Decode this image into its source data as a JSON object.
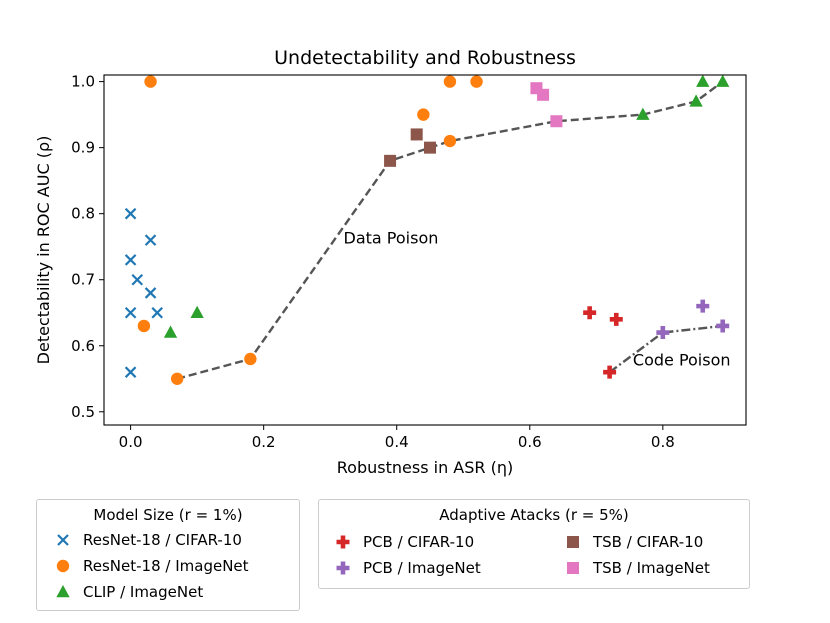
{
  "chart_data": {
    "type": "scatter",
    "title": "Undetectability and Robustness",
    "xlabel": "Robustness in ASR (η)",
    "ylabel": "Detectability in ROC AUC (ρ)",
    "xlim": [
      -0.04,
      0.925
    ],
    "ylim": [
      0.48,
      1.01
    ],
    "xticks": [
      "0.0",
      "0.2",
      "0.4",
      "0.6",
      "0.8"
    ],
    "xtick_values": [
      0.0,
      0.2,
      0.4,
      0.6,
      0.8
    ],
    "yticks": [
      "0.5",
      "0.6",
      "0.7",
      "0.8",
      "0.9",
      "1.0"
    ],
    "ytick_values": [
      0.5,
      0.6,
      0.7,
      0.8,
      0.9,
      1.0
    ],
    "series": [
      {
        "name": "ResNet-18 / CIFAR-10",
        "marker": "x",
        "color": "#1f77b4",
        "points": [
          [
            0.0,
            0.8
          ],
          [
            0.03,
            0.76
          ],
          [
            0.0,
            0.73
          ],
          [
            0.01,
            0.7
          ],
          [
            0.03,
            0.68
          ],
          [
            0.0,
            0.65
          ],
          [
            0.04,
            0.65
          ],
          [
            0.0,
            0.56
          ]
        ]
      },
      {
        "name": "ResNet-18 / ImageNet",
        "marker": "circle",
        "color": "#ff7f0e",
        "points": [
          [
            0.03,
            1.0
          ],
          [
            0.48,
            1.0
          ],
          [
            0.52,
            1.0
          ],
          [
            0.44,
            0.95
          ],
          [
            0.48,
            0.91
          ],
          [
            0.02,
            0.63
          ],
          [
            0.18,
            0.58
          ],
          [
            0.07,
            0.55
          ]
        ]
      },
      {
        "name": "CLIP / ImageNet",
        "marker": "triangle",
        "color": "#2ca02c",
        "points": [
          [
            0.86,
            1.0
          ],
          [
            0.89,
            1.0
          ],
          [
            0.85,
            0.97
          ],
          [
            0.77,
            0.95
          ],
          [
            0.06,
            0.62
          ],
          [
            0.1,
            0.65
          ]
        ]
      },
      {
        "name": "PCB / CIFAR-10",
        "marker": "plus",
        "color": "#d62728",
        "points": [
          [
            0.69,
            0.65
          ],
          [
            0.73,
            0.64
          ],
          [
            0.72,
            0.56
          ]
        ]
      },
      {
        "name": "PCB / ImageNet",
        "marker": "plus",
        "color": "#9467bd",
        "points": [
          [
            0.86,
            0.66
          ],
          [
            0.8,
            0.62
          ],
          [
            0.89,
            0.63
          ]
        ]
      },
      {
        "name": "TSB / CIFAR-10",
        "marker": "square",
        "color": "#8c564b",
        "points": [
          [
            0.43,
            0.92
          ],
          [
            0.45,
            0.9
          ],
          [
            0.39,
            0.88
          ]
        ]
      },
      {
        "name": "TSB / ImageNet",
        "marker": "square",
        "color": "#e377c2",
        "points": [
          [
            0.61,
            0.99
          ],
          [
            0.62,
            0.98
          ],
          [
            0.64,
            0.94
          ]
        ]
      }
    ],
    "lines": [
      {
        "name": "Data Poison frontier",
        "style": "dashed",
        "color": "#555555",
        "points": [
          [
            0.07,
            0.55
          ],
          [
            0.18,
            0.58
          ],
          [
            0.39,
            0.88
          ],
          [
            0.45,
            0.9
          ],
          [
            0.48,
            0.91
          ],
          [
            0.64,
            0.94
          ],
          [
            0.77,
            0.95
          ],
          [
            0.85,
            0.97
          ],
          [
            0.89,
            1.0
          ]
        ]
      },
      {
        "name": "Code Poison frontier",
        "style": "dashdot",
        "color": "#555555",
        "points": [
          [
            0.72,
            0.56
          ],
          [
            0.8,
            0.62
          ],
          [
            0.89,
            0.63
          ]
        ]
      }
    ],
    "annotations": [
      {
        "text": "Data Poison",
        "x": 0.32,
        "y": 0.755
      },
      {
        "text": "Code Poison",
        "x": 0.755,
        "y": 0.57
      }
    ]
  },
  "legend_model": {
    "title": "Model Size (r = 1%)",
    "items": [
      {
        "label": "ResNet-18 / CIFAR-10",
        "marker": "x",
        "color": "#1f77b4"
      },
      {
        "label": "ResNet-18 / ImageNet",
        "marker": "circle",
        "color": "#ff7f0e"
      },
      {
        "label": "CLIP / ImageNet",
        "marker": "triangle",
        "color": "#2ca02c"
      }
    ]
  },
  "legend_adaptive": {
    "title": "Adaptive Atacks (r = 5%)",
    "items": [
      {
        "label": "PCB / CIFAR-10",
        "marker": "plus",
        "color": "#d62728"
      },
      {
        "label": "PCB / ImageNet",
        "marker": "plus",
        "color": "#9467bd"
      },
      {
        "label": "TSB / CIFAR-10",
        "marker": "square",
        "color": "#8c564b"
      },
      {
        "label": "TSB / ImageNet",
        "marker": "square",
        "color": "#e377c2"
      }
    ]
  }
}
